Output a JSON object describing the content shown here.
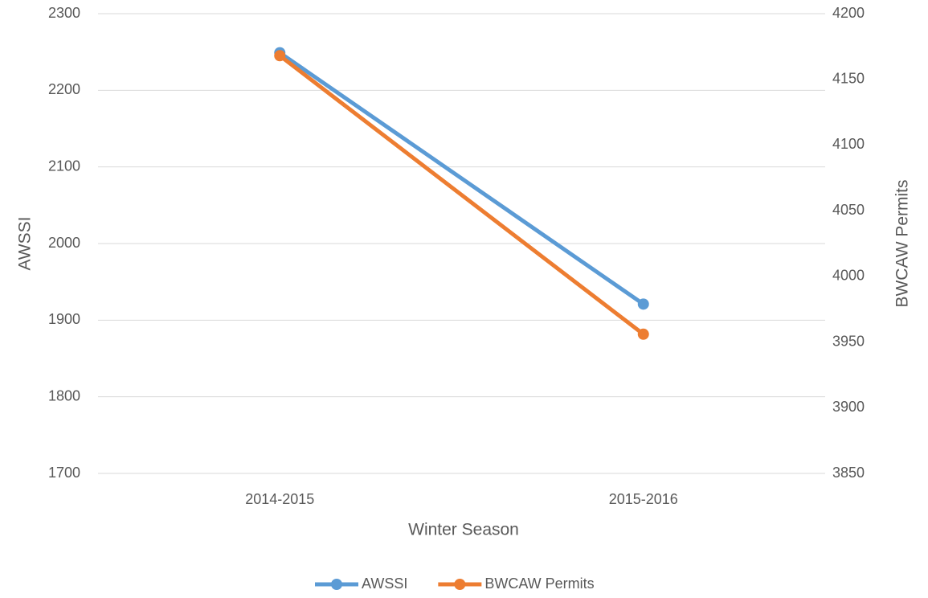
{
  "chart_data": {
    "type": "line",
    "x_label": "Winter Season",
    "y_label": "AWSSI",
    "y2_label": "BWCAW Permits",
    "categories": [
      "2014-2015",
      "2015-2016"
    ],
    "series": [
      {
        "name": "AWSSI",
        "color": "#5b9bd5",
        "values": [
          2249,
          1921
        ]
      },
      {
        "name": "BWCAW Permits",
        "color": "#ed7d31",
        "axis": "y2",
        "values": [
          4168,
          3956
        ]
      }
    ],
    "ylim": [
      1700,
      2300
    ],
    "yticks": [
      1700,
      1800,
      1900,
      2000,
      2100,
      2200,
      2300
    ],
    "y2lim": [
      3850,
      4200
    ],
    "y2ticks": [
      3850,
      3900,
      3950,
      4000,
      4050,
      4100,
      4150,
      4200
    ],
    "grid": true,
    "legend": "bottom"
  }
}
